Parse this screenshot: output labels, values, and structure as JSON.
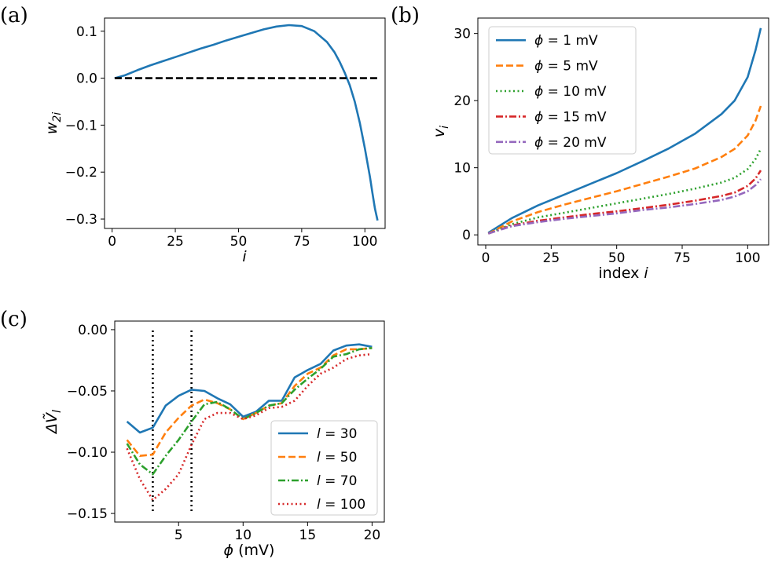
{
  "panels": {
    "a": {
      "label": "(a)"
    },
    "b": {
      "label": "(b)"
    },
    "c": {
      "label": "(c)"
    }
  },
  "chart_data": [
    {
      "id": "a",
      "type": "line",
      "title": "",
      "xlabel": "i",
      "ylabel": "w",
      "ylabel_sub": "2i",
      "xlim": [
        -3,
        108
      ],
      "ylim": [
        -0.32,
        0.128
      ],
      "xticks": [
        0,
        25,
        50,
        75,
        100
      ],
      "xtick_labels": [
        "0",
        "25",
        "50",
        "75",
        "100"
      ],
      "yticks": [
        0.1,
        0.0,
        -0.1,
        -0.2,
        -0.3
      ],
      "ytick_labels": [
        "0.1",
        "0.0",
        "−0.1",
        "−0.2",
        "−0.3"
      ],
      "series": [
        {
          "name": "w2i",
          "color": "#1f77b4",
          "dash": "solid",
          "x": [
            1,
            5,
            10,
            15,
            20,
            25,
            30,
            35,
            40,
            45,
            50,
            55,
            60,
            65,
            70,
            75,
            80,
            85,
            88,
            90,
            92,
            94,
            96,
            98,
            100,
            102,
            103,
            104,
            105
          ],
          "y": [
            0.0,
            0.006,
            0.017,
            0.027,
            0.036,
            0.045,
            0.054,
            0.063,
            0.071,
            0.08,
            0.088,
            0.096,
            0.104,
            0.11,
            0.113,
            0.111,
            0.1,
            0.077,
            0.055,
            0.035,
            0.012,
            -0.015,
            -0.05,
            -0.095,
            -0.15,
            -0.21,
            -0.245,
            -0.278,
            -0.303
          ]
        },
        {
          "name": "zero",
          "color": "#000000",
          "dash": "dashed",
          "x": [
            1,
            105
          ],
          "y": [
            0.0,
            0.0
          ]
        }
      ]
    },
    {
      "id": "b",
      "type": "line",
      "title": "",
      "xlabel": "index i",
      "ylabel": "v",
      "ylabel_sub": "i",
      "xlim": [
        -3,
        108
      ],
      "ylim": [
        -1.5,
        32.3
      ],
      "xticks": [
        0,
        25,
        50,
        75,
        100
      ],
      "xtick_labels": [
        "0",
        "25",
        "50",
        "75",
        "100"
      ],
      "yticks": [
        0,
        10,
        20,
        30
      ],
      "ytick_labels": [
        "0",
        "10",
        "20",
        "30"
      ],
      "legend_loc": "upper-left",
      "series": [
        {
          "name": "ϕ = 1 mV",
          "color": "#1f77b4",
          "dash": "solid",
          "x": [
            1,
            10,
            20,
            30,
            40,
            50,
            60,
            70,
            80,
            90,
            95,
            100,
            103,
            105
          ],
          "y": [
            0.3,
            2.5,
            4.4,
            6.0,
            7.6,
            9.2,
            11.0,
            12.9,
            15.1,
            18.0,
            20.0,
            23.5,
            27.5,
            30.8
          ]
        },
        {
          "name": "ϕ = 5 mV",
          "color": "#ff7f0e",
          "dash": "dashed",
          "x": [
            1,
            10,
            20,
            30,
            40,
            50,
            60,
            70,
            80,
            90,
            95,
            100,
            103,
            105
          ],
          "y": [
            0.2,
            2.0,
            3.4,
            4.5,
            5.5,
            6.5,
            7.6,
            8.7,
            9.9,
            11.6,
            12.8,
            14.8,
            17.0,
            19.2
          ]
        },
        {
          "name": "ϕ = 10 mV",
          "color": "#2ca02c",
          "dash": "dotted",
          "x": [
            1,
            10,
            20,
            30,
            40,
            50,
            60,
            70,
            80,
            90,
            95,
            100,
            103,
            105
          ],
          "y": [
            0.2,
            1.6,
            2.6,
            3.3,
            4.0,
            4.7,
            5.4,
            6.1,
            6.9,
            7.8,
            8.5,
            9.8,
            11.3,
            12.8
          ]
        },
        {
          "name": "ϕ = 15 mV",
          "color": "#d62728",
          "dash": "dashdot",
          "x": [
            1,
            10,
            20,
            30,
            40,
            50,
            60,
            70,
            80,
            90,
            95,
            100,
            103,
            105
          ],
          "y": [
            0.2,
            1.4,
            2.1,
            2.6,
            3.1,
            3.5,
            4.0,
            4.5,
            5.1,
            5.8,
            6.3,
            7.3,
            8.4,
            9.6
          ]
        },
        {
          "name": "ϕ = 20 mV",
          "color": "#9467bd",
          "dash": "dashdot",
          "x": [
            1,
            10,
            20,
            30,
            40,
            50,
            60,
            70,
            80,
            90,
            95,
            100,
            103,
            105
          ],
          "y": [
            0.2,
            1.3,
            1.9,
            2.4,
            2.8,
            3.2,
            3.7,
            4.1,
            4.6,
            5.2,
            5.7,
            6.5,
            7.4,
            8.3
          ]
        }
      ]
    },
    {
      "id": "c",
      "type": "line",
      "title": "",
      "xlabel": "ϕ (mV)",
      "ylabel": "ΔṼ",
      "ylabel_sub": "l",
      "xlim": [
        0.05,
        20.95
      ],
      "ylim": [
        -0.157,
        0.007
      ],
      "xticks": [
        5,
        10,
        15,
        20
      ],
      "xtick_labels": [
        "5",
        "10",
        "15",
        "20"
      ],
      "yticks": [
        0.0,
        -0.05,
        -0.1,
        -0.15
      ],
      "ytick_labels": [
        "0.00",
        "−0.05",
        "−0.10",
        "−0.15"
      ],
      "legend_loc": "lower-right",
      "vlines": [
        3,
        6
      ],
      "series": [
        {
          "name": "l = 30",
          "color": "#1f77b4",
          "dash": "solid",
          "x": [
            1,
            2,
            3,
            4,
            5,
            6,
            7,
            8,
            9,
            10,
            11,
            12,
            13,
            14,
            15,
            16,
            17,
            18,
            19,
            20
          ],
          "y": [
            -0.075,
            -0.084,
            -0.08,
            -0.062,
            -0.054,
            -0.049,
            -0.05,
            -0.056,
            -0.061,
            -0.071,
            -0.067,
            -0.058,
            -0.058,
            -0.039,
            -0.033,
            -0.028,
            -0.017,
            -0.013,
            -0.012,
            -0.014
          ]
        },
        {
          "name": "l = 50",
          "color": "#ff7f0e",
          "dash": "dashed",
          "x": [
            1,
            2,
            3,
            4,
            5,
            6,
            7,
            8,
            9,
            10,
            11,
            12,
            13,
            14,
            15,
            16,
            17,
            18,
            19,
            20
          ],
          "y": [
            -0.09,
            -0.103,
            -0.102,
            -0.084,
            -0.072,
            -0.062,
            -0.057,
            -0.06,
            -0.065,
            -0.073,
            -0.068,
            -0.062,
            -0.06,
            -0.046,
            -0.036,
            -0.031,
            -0.021,
            -0.016,
            -0.016,
            -0.015
          ]
        },
        {
          "name": "l = 70",
          "color": "#2ca02c",
          "dash": "dashdot",
          "x": [
            1,
            2,
            3,
            4,
            5,
            6,
            7,
            8,
            9,
            10,
            11,
            12,
            13,
            14,
            15,
            16,
            17,
            18,
            19,
            20
          ],
          "y": [
            -0.093,
            -0.11,
            -0.118,
            -0.103,
            -0.09,
            -0.075,
            -0.061,
            -0.059,
            -0.065,
            -0.073,
            -0.068,
            -0.062,
            -0.06,
            -0.049,
            -0.04,
            -0.032,
            -0.022,
            -0.02,
            -0.016,
            -0.015
          ]
        },
        {
          "name": "l = 100",
          "color": "#d62728",
          "dash": "dotted",
          "x": [
            1,
            2,
            3,
            4,
            5,
            6,
            7,
            8,
            9,
            10,
            11,
            12,
            13,
            14,
            15,
            16,
            17,
            18,
            19,
            20
          ],
          "y": [
            -0.097,
            -0.122,
            -0.139,
            -0.13,
            -0.118,
            -0.094,
            -0.073,
            -0.068,
            -0.068,
            -0.073,
            -0.07,
            -0.064,
            -0.063,
            -0.058,
            -0.046,
            -0.036,
            -0.031,
            -0.024,
            -0.021,
            -0.02
          ]
        }
      ]
    }
  ]
}
